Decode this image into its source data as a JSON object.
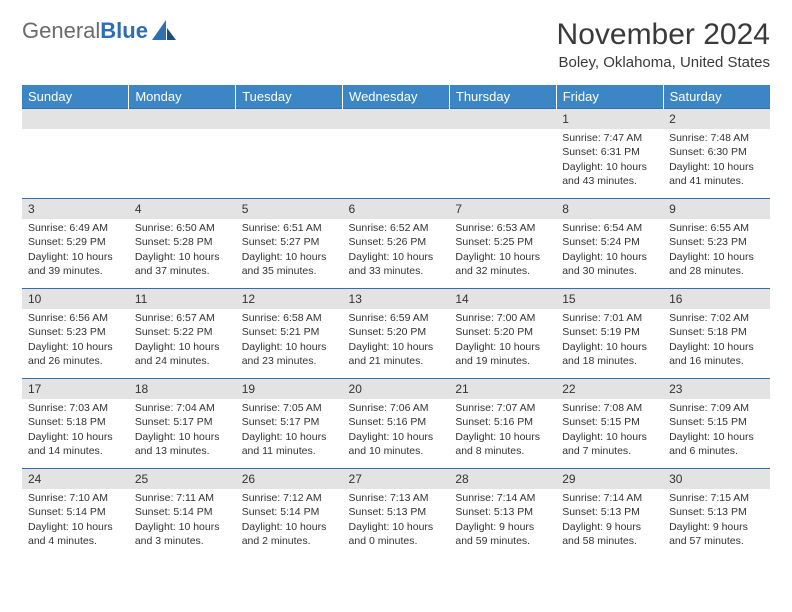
{
  "brand": {
    "name_part1": "General",
    "name_part2": "Blue"
  },
  "colors": {
    "header_bg": "#3d86c6",
    "header_fg": "#ffffff",
    "daynum_bg": "#e3e3e3",
    "row_border": "#2f6fb0",
    "text": "#333333",
    "logo_gray": "#6b6b6b",
    "logo_blue": "#2f6fb0"
  },
  "title": "November 2024",
  "location": "Boley, Oklahoma, United States",
  "weekdays": [
    "Sunday",
    "Monday",
    "Tuesday",
    "Wednesday",
    "Thursday",
    "Friday",
    "Saturday"
  ],
  "weeks": [
    [
      {
        "n": "",
        "sunrise": "",
        "sunset": "",
        "daylight": ""
      },
      {
        "n": "",
        "sunrise": "",
        "sunset": "",
        "daylight": ""
      },
      {
        "n": "",
        "sunrise": "",
        "sunset": "",
        "daylight": ""
      },
      {
        "n": "",
        "sunrise": "",
        "sunset": "",
        "daylight": ""
      },
      {
        "n": "",
        "sunrise": "",
        "sunset": "",
        "daylight": ""
      },
      {
        "n": "1",
        "sunrise": "Sunrise: 7:47 AM",
        "sunset": "Sunset: 6:31 PM",
        "daylight": "Daylight: 10 hours and 43 minutes."
      },
      {
        "n": "2",
        "sunrise": "Sunrise: 7:48 AM",
        "sunset": "Sunset: 6:30 PM",
        "daylight": "Daylight: 10 hours and 41 minutes."
      }
    ],
    [
      {
        "n": "3",
        "sunrise": "Sunrise: 6:49 AM",
        "sunset": "Sunset: 5:29 PM",
        "daylight": "Daylight: 10 hours and 39 minutes."
      },
      {
        "n": "4",
        "sunrise": "Sunrise: 6:50 AM",
        "sunset": "Sunset: 5:28 PM",
        "daylight": "Daylight: 10 hours and 37 minutes."
      },
      {
        "n": "5",
        "sunrise": "Sunrise: 6:51 AM",
        "sunset": "Sunset: 5:27 PM",
        "daylight": "Daylight: 10 hours and 35 minutes."
      },
      {
        "n": "6",
        "sunrise": "Sunrise: 6:52 AM",
        "sunset": "Sunset: 5:26 PM",
        "daylight": "Daylight: 10 hours and 33 minutes."
      },
      {
        "n": "7",
        "sunrise": "Sunrise: 6:53 AM",
        "sunset": "Sunset: 5:25 PM",
        "daylight": "Daylight: 10 hours and 32 minutes."
      },
      {
        "n": "8",
        "sunrise": "Sunrise: 6:54 AM",
        "sunset": "Sunset: 5:24 PM",
        "daylight": "Daylight: 10 hours and 30 minutes."
      },
      {
        "n": "9",
        "sunrise": "Sunrise: 6:55 AM",
        "sunset": "Sunset: 5:23 PM",
        "daylight": "Daylight: 10 hours and 28 minutes."
      }
    ],
    [
      {
        "n": "10",
        "sunrise": "Sunrise: 6:56 AM",
        "sunset": "Sunset: 5:23 PM",
        "daylight": "Daylight: 10 hours and 26 minutes."
      },
      {
        "n": "11",
        "sunrise": "Sunrise: 6:57 AM",
        "sunset": "Sunset: 5:22 PM",
        "daylight": "Daylight: 10 hours and 24 minutes."
      },
      {
        "n": "12",
        "sunrise": "Sunrise: 6:58 AM",
        "sunset": "Sunset: 5:21 PM",
        "daylight": "Daylight: 10 hours and 23 minutes."
      },
      {
        "n": "13",
        "sunrise": "Sunrise: 6:59 AM",
        "sunset": "Sunset: 5:20 PM",
        "daylight": "Daylight: 10 hours and 21 minutes."
      },
      {
        "n": "14",
        "sunrise": "Sunrise: 7:00 AM",
        "sunset": "Sunset: 5:20 PM",
        "daylight": "Daylight: 10 hours and 19 minutes."
      },
      {
        "n": "15",
        "sunrise": "Sunrise: 7:01 AM",
        "sunset": "Sunset: 5:19 PM",
        "daylight": "Daylight: 10 hours and 18 minutes."
      },
      {
        "n": "16",
        "sunrise": "Sunrise: 7:02 AM",
        "sunset": "Sunset: 5:18 PM",
        "daylight": "Daylight: 10 hours and 16 minutes."
      }
    ],
    [
      {
        "n": "17",
        "sunrise": "Sunrise: 7:03 AM",
        "sunset": "Sunset: 5:18 PM",
        "daylight": "Daylight: 10 hours and 14 minutes."
      },
      {
        "n": "18",
        "sunrise": "Sunrise: 7:04 AM",
        "sunset": "Sunset: 5:17 PM",
        "daylight": "Daylight: 10 hours and 13 minutes."
      },
      {
        "n": "19",
        "sunrise": "Sunrise: 7:05 AM",
        "sunset": "Sunset: 5:17 PM",
        "daylight": "Daylight: 10 hours and 11 minutes."
      },
      {
        "n": "20",
        "sunrise": "Sunrise: 7:06 AM",
        "sunset": "Sunset: 5:16 PM",
        "daylight": "Daylight: 10 hours and 10 minutes."
      },
      {
        "n": "21",
        "sunrise": "Sunrise: 7:07 AM",
        "sunset": "Sunset: 5:16 PM",
        "daylight": "Daylight: 10 hours and 8 minutes."
      },
      {
        "n": "22",
        "sunrise": "Sunrise: 7:08 AM",
        "sunset": "Sunset: 5:15 PM",
        "daylight": "Daylight: 10 hours and 7 minutes."
      },
      {
        "n": "23",
        "sunrise": "Sunrise: 7:09 AM",
        "sunset": "Sunset: 5:15 PM",
        "daylight": "Daylight: 10 hours and 6 minutes."
      }
    ],
    [
      {
        "n": "24",
        "sunrise": "Sunrise: 7:10 AM",
        "sunset": "Sunset: 5:14 PM",
        "daylight": "Daylight: 10 hours and 4 minutes."
      },
      {
        "n": "25",
        "sunrise": "Sunrise: 7:11 AM",
        "sunset": "Sunset: 5:14 PM",
        "daylight": "Daylight: 10 hours and 3 minutes."
      },
      {
        "n": "26",
        "sunrise": "Sunrise: 7:12 AM",
        "sunset": "Sunset: 5:14 PM",
        "daylight": "Daylight: 10 hours and 2 minutes."
      },
      {
        "n": "27",
        "sunrise": "Sunrise: 7:13 AM",
        "sunset": "Sunset: 5:13 PM",
        "daylight": "Daylight: 10 hours and 0 minutes."
      },
      {
        "n": "28",
        "sunrise": "Sunrise: 7:14 AM",
        "sunset": "Sunset: 5:13 PM",
        "daylight": "Daylight: 9 hours and 59 minutes."
      },
      {
        "n": "29",
        "sunrise": "Sunrise: 7:14 AM",
        "sunset": "Sunset: 5:13 PM",
        "daylight": "Daylight: 9 hours and 58 minutes."
      },
      {
        "n": "30",
        "sunrise": "Sunrise: 7:15 AM",
        "sunset": "Sunset: 5:13 PM",
        "daylight": "Daylight: 9 hours and 57 minutes."
      }
    ]
  ]
}
